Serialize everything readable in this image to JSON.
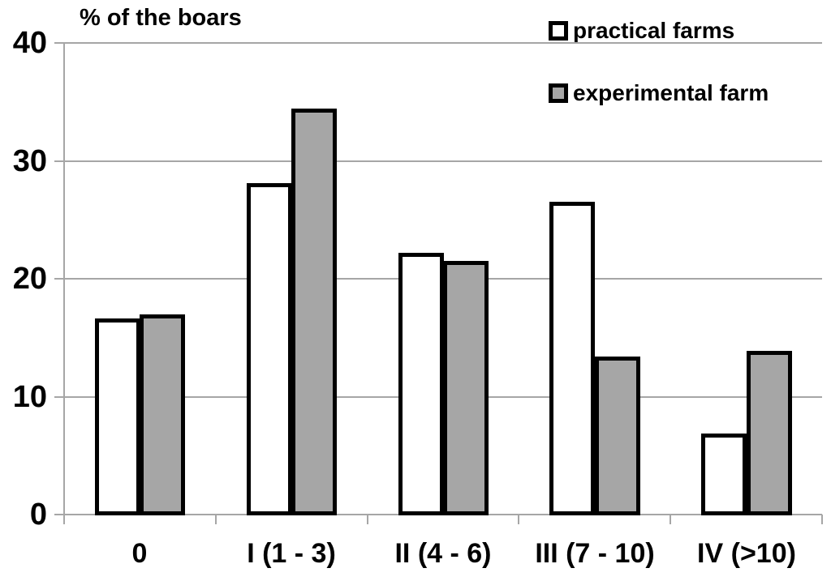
{
  "chart_data": {
    "type": "bar",
    "title": "% of the boars",
    "categories": [
      "0",
      "I (1 - 3)",
      "II (4 - 6)",
      "III (7 - 10)",
      "IV (>10)"
    ],
    "series": [
      {
        "name": "practical farms",
        "fill": "#ffffff",
        "values": [
          16.6,
          28.1,
          22.2,
          26.5,
          6.9
        ]
      },
      {
        "name": "experimental farm",
        "fill": "#a6a6a6",
        "values": [
          17.0,
          34.4,
          21.5,
          13.4,
          13.9
        ]
      }
    ],
    "ylabel": "% of the boars",
    "xlabel": "",
    "ylim": [
      0,
      40
    ],
    "yticks": [
      0,
      10,
      20,
      30,
      40
    ],
    "grid": true,
    "legend_position": "top-right",
    "colors": {
      "bar_border": "#000000",
      "axis_and_grid": "#a6a6a6",
      "text": "#000000",
      "background": "#ffffff"
    }
  }
}
